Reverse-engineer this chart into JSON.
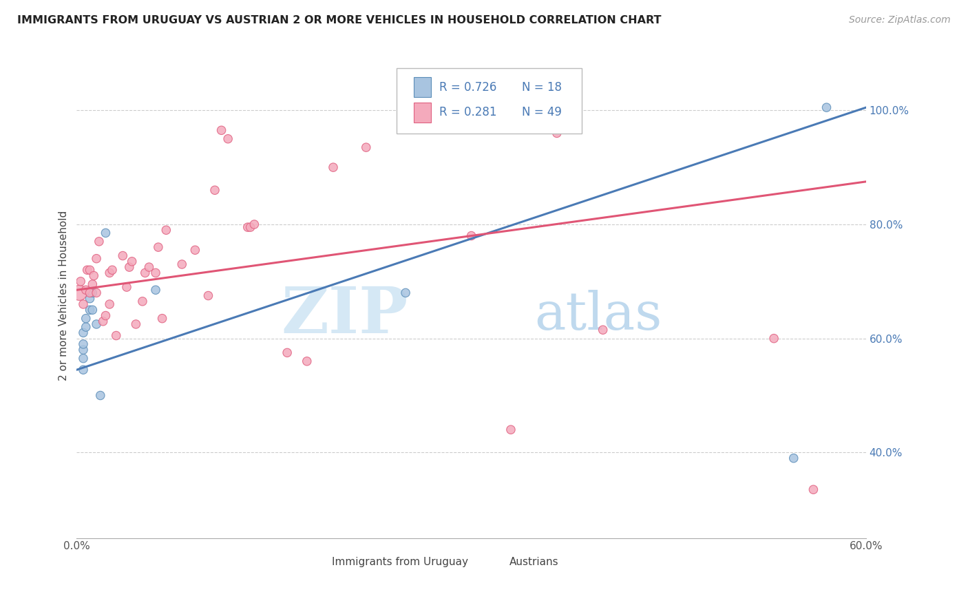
{
  "title": "IMMIGRANTS FROM URUGUAY VS AUSTRIAN 2 OR MORE VEHICLES IN HOUSEHOLD CORRELATION CHART",
  "source": "Source: ZipAtlas.com",
  "ylabel": "2 or more Vehicles in Household",
  "legend_blue_r": "R = 0.726",
  "legend_blue_n": "N = 18",
  "legend_pink_r": "R = 0.281",
  "legend_pink_n": "N = 49",
  "legend_label_blue": "Immigrants from Uruguay",
  "legend_label_pink": "Austrians",
  "xlim": [
    0.0,
    0.6
  ],
  "ylim": [
    0.25,
    1.1
  ],
  "xtick_labels": [
    "0.0%",
    "",
    "",
    "",
    "",
    "",
    "60.0%"
  ],
  "xtick_values": [
    0.0,
    0.1,
    0.2,
    0.3,
    0.4,
    0.5,
    0.6
  ],
  "ytick_labels_right": [
    "40.0%",
    "60.0%",
    "80.0%",
    "100.0%"
  ],
  "ytick_values": [
    0.4,
    0.6,
    0.8,
    1.0
  ],
  "watermark_zip": "ZIP",
  "watermark_atlas": "atlas",
  "blue_color": "#A8C4E0",
  "pink_color": "#F4AABC",
  "blue_edge_color": "#5B8DB8",
  "pink_edge_color": "#E06080",
  "blue_line_color": "#4A7AB5",
  "pink_line_color": "#E05575",
  "blue_scatter_x": [
    0.005,
    0.005,
    0.005,
    0.005,
    0.005,
    0.007,
    0.007,
    0.01,
    0.01,
    0.012,
    0.012,
    0.015,
    0.018,
    0.022,
    0.06,
    0.25,
    0.545,
    0.57
  ],
  "blue_scatter_y": [
    0.545,
    0.565,
    0.58,
    0.59,
    0.61,
    0.62,
    0.635,
    0.65,
    0.67,
    0.65,
    0.68,
    0.625,
    0.5,
    0.785,
    0.685,
    0.68,
    0.39,
    1.005
  ],
  "blue_scatter_sizes": [
    80,
    80,
    80,
    80,
    80,
    80,
    80,
    80,
    80,
    80,
    80,
    80,
    80,
    80,
    80,
    80,
    80,
    80
  ],
  "pink_scatter_x": [
    0.002,
    0.003,
    0.005,
    0.007,
    0.008,
    0.01,
    0.01,
    0.012,
    0.013,
    0.015,
    0.015,
    0.017,
    0.02,
    0.022,
    0.025,
    0.025,
    0.027,
    0.03,
    0.035,
    0.038,
    0.04,
    0.042,
    0.045,
    0.05,
    0.052,
    0.055,
    0.06,
    0.062,
    0.065,
    0.068,
    0.08,
    0.09,
    0.1,
    0.105,
    0.11,
    0.115,
    0.13,
    0.132,
    0.135,
    0.16,
    0.175,
    0.195,
    0.22,
    0.3,
    0.33,
    0.365,
    0.4,
    0.53,
    0.56
  ],
  "pink_scatter_y": [
    0.68,
    0.7,
    0.66,
    0.685,
    0.72,
    0.68,
    0.72,
    0.695,
    0.71,
    0.68,
    0.74,
    0.77,
    0.63,
    0.64,
    0.66,
    0.715,
    0.72,
    0.605,
    0.745,
    0.69,
    0.725,
    0.735,
    0.625,
    0.665,
    0.715,
    0.725,
    0.715,
    0.76,
    0.635,
    0.79,
    0.73,
    0.755,
    0.675,
    0.86,
    0.965,
    0.95,
    0.795,
    0.795,
    0.8,
    0.575,
    0.56,
    0.9,
    0.935,
    0.78,
    0.44,
    0.96,
    0.615,
    0.6,
    0.335
  ],
  "pink_scatter_sizes": [
    250,
    80,
    80,
    80,
    80,
    80,
    80,
    80,
    80,
    80,
    80,
    80,
    80,
    80,
    80,
    80,
    80,
    80,
    80,
    80,
    80,
    80,
    80,
    80,
    80,
    80,
    80,
    80,
    80,
    80,
    80,
    80,
    80,
    80,
    80,
    80,
    80,
    80,
    80,
    80,
    80,
    80,
    80,
    80,
    80,
    80,
    80,
    80,
    80
  ],
  "blue_line_x0": 0.0,
  "blue_line_x1": 0.6,
  "blue_line_y0": 0.545,
  "blue_line_y1": 1.005,
  "pink_line_x0": 0.0,
  "pink_line_x1": 0.6,
  "pink_line_y0": 0.685,
  "pink_line_y1": 0.875,
  "grid_color": "#CCCCCC",
  "title_color": "#222222",
  "source_color": "#999999",
  "right_tick_color": "#4A7AB5"
}
